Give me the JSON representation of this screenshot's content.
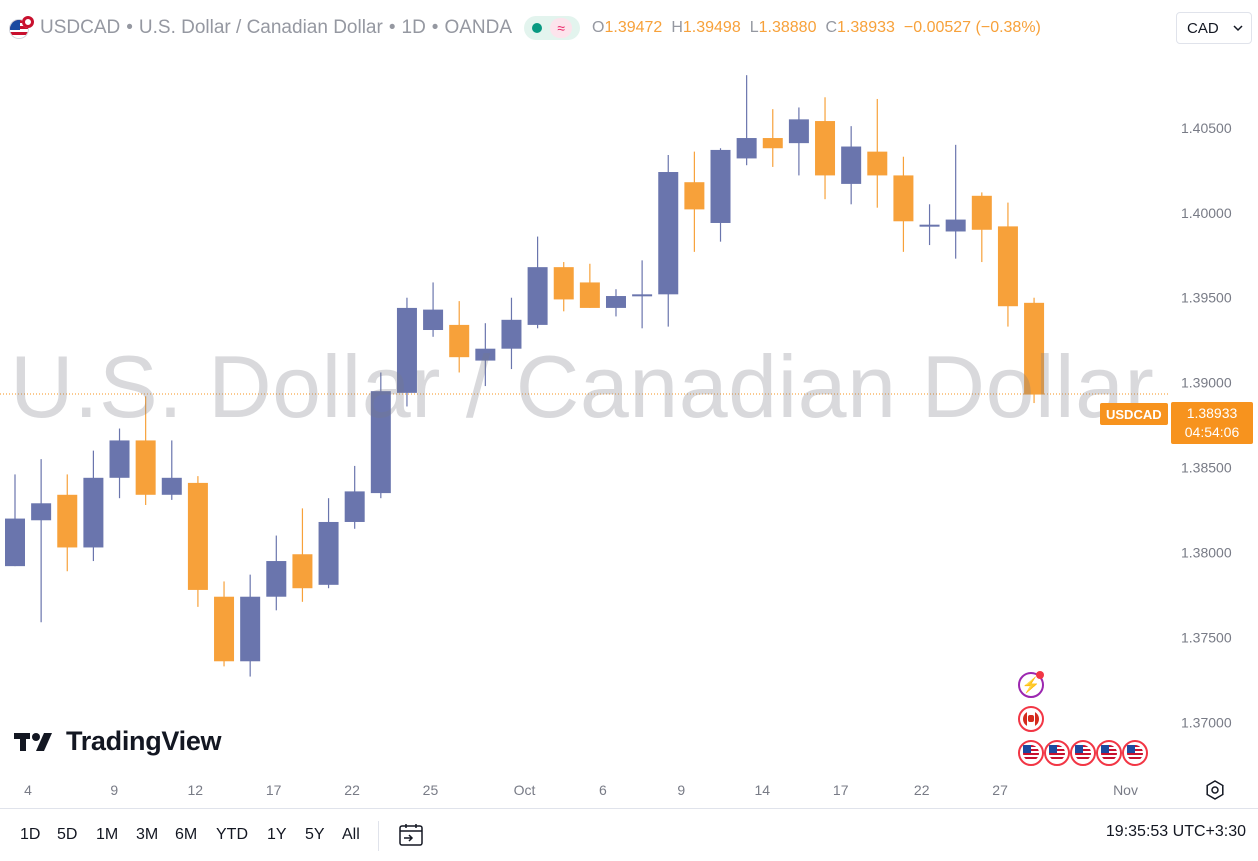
{
  "header": {
    "symbol": "USDCAD",
    "name": "U.S. Dollar / Canadian Dollar",
    "interval": "1D",
    "exchange": "OANDA",
    "open_label": "O",
    "open_value": "1.39472",
    "high_label": "H",
    "high_value": "1.39498",
    "low_label": "L",
    "low_value": "1.38880",
    "close_label": "C",
    "close_value": "1.38933",
    "change": "−0.00527 (−0.38%)"
  },
  "currency_button": {
    "label": "CAD"
  },
  "watermark": "U.S. Dollar / Canadian Dollar",
  "logo": {
    "text": "TradingView"
  },
  "price_label": {
    "symbol": "USDCAD",
    "price": "1.38933",
    "countdown": "04:54:06"
  },
  "timeframes": [
    "1D",
    "5D",
    "1M",
    "3M",
    "6M",
    "YTD",
    "1Y",
    "5Y",
    "All"
  ],
  "clock": "19:35:53 UTC+3:30",
  "colors": {
    "up": "#6a75ad",
    "down": "#f7a13a",
    "price_line": "#f7931e",
    "axis_text": "#787b86"
  },
  "icons": [
    "settings-icon",
    "calendar-range-icon",
    "chevron-down-icon",
    "bolt-icon",
    "canada-flag-icon",
    "us-flag-icon"
  ],
  "chart_data": {
    "type": "candlestick",
    "x_tick_labels": [
      "4",
      "9",
      "12",
      "17",
      "22",
      "25",
      "Oct",
      "6",
      "9",
      "14",
      "17",
      "22",
      "27",
      "Nov"
    ],
    "y_tick_labels": [
      "1.40500",
      "1.40000",
      "1.39500",
      "1.39000",
      "1.38500",
      "1.38000",
      "1.37500",
      "1.37000"
    ],
    "y_ticks": [
      1.405,
      1.4,
      1.395,
      1.39,
      1.385,
      1.38,
      1.375,
      1.37
    ],
    "ylim": [
      1.3672,
      1.4097
    ],
    "last_price": 1.38933,
    "candles": [
      {
        "o": 1.3792,
        "h": 1.3846,
        "l": 1.3792,
        "c": 1.382
      },
      {
        "o": 1.3819,
        "h": 1.3855,
        "l": 1.3759,
        "c": 1.3829
      },
      {
        "o": 1.3834,
        "h": 1.3846,
        "l": 1.3789,
        "c": 1.3803
      },
      {
        "o": 1.3803,
        "h": 1.386,
        "l": 1.3795,
        "c": 1.3844
      },
      {
        "o": 1.3844,
        "h": 1.3873,
        "l": 1.3832,
        "c": 1.3866
      },
      {
        "o": 1.3866,
        "h": 1.3892,
        "l": 1.3828,
        "c": 1.3834
      },
      {
        "o": 1.3834,
        "h": 1.3866,
        "l": 1.3831,
        "c": 1.3844
      },
      {
        "o": 1.3841,
        "h": 1.3845,
        "l": 1.3768,
        "c": 1.3778
      },
      {
        "o": 1.3774,
        "h": 1.3783,
        "l": 1.3733,
        "c": 1.3736
      },
      {
        "o": 1.3736,
        "h": 1.3787,
        "l": 1.3727,
        "c": 1.3774
      },
      {
        "o": 1.3774,
        "h": 1.381,
        "l": 1.3766,
        "c": 1.3795
      },
      {
        "o": 1.3799,
        "h": 1.3826,
        "l": 1.3771,
        "c": 1.3779
      },
      {
        "o": 1.3781,
        "h": 1.3832,
        "l": 1.3779,
        "c": 1.3818
      },
      {
        "o": 1.3818,
        "h": 1.3851,
        "l": 1.3814,
        "c": 1.3836
      },
      {
        "o": 1.3835,
        "h": 1.3906,
        "l": 1.3832,
        "c": 1.3895
      },
      {
        "o": 1.3894,
        "h": 1.395,
        "l": 1.3886,
        "c": 1.3944
      },
      {
        "o": 1.3931,
        "h": 1.3959,
        "l": 1.3927,
        "c": 1.3943
      },
      {
        "o": 1.3934,
        "h": 1.3948,
        "l": 1.3906,
        "c": 1.3915
      },
      {
        "o": 1.3913,
        "h": 1.3935,
        "l": 1.3898,
        "c": 1.392
      },
      {
        "o": 1.392,
        "h": 1.395,
        "l": 1.3908,
        "c": 1.3937
      },
      {
        "o": 1.3934,
        "h": 1.3986,
        "l": 1.3932,
        "c": 1.3968
      },
      {
        "o": 1.3968,
        "h": 1.3971,
        "l": 1.3942,
        "c": 1.3949
      },
      {
        "o": 1.3959,
        "h": 1.397,
        "l": 1.3944,
        "c": 1.3944
      },
      {
        "o": 1.3944,
        "h": 1.3955,
        "l": 1.3939,
        "c": 1.3951
      },
      {
        "o": 1.3951,
        "h": 1.3972,
        "l": 1.3932,
        "c": 1.3952
      },
      {
        "o": 1.3952,
        "h": 1.4034,
        "l": 1.3933,
        "c": 1.4024
      },
      {
        "o": 1.4018,
        "h": 1.4036,
        "l": 1.3977,
        "c": 1.4002
      },
      {
        "o": 1.3994,
        "h": 1.4038,
        "l": 1.3983,
        "c": 1.4037
      },
      {
        "o": 1.4032,
        "h": 1.4081,
        "l": 1.4028,
        "c": 1.4044
      },
      {
        "o": 1.4044,
        "h": 1.4061,
        "l": 1.4027,
        "c": 1.4038
      },
      {
        "o": 1.4041,
        "h": 1.4062,
        "l": 1.4022,
        "c": 1.4055
      },
      {
        "o": 1.4054,
        "h": 1.4068,
        "l": 1.4008,
        "c": 1.4022
      },
      {
        "o": 1.4017,
        "h": 1.4051,
        "l": 1.4005,
        "c": 1.4039
      },
      {
        "o": 1.4036,
        "h": 1.4067,
        "l": 1.4003,
        "c": 1.4022
      },
      {
        "o": 1.4022,
        "h": 1.4033,
        "l": 1.3977,
        "c": 1.3995
      },
      {
        "o": 1.3993,
        "h": 1.4005,
        "l": 1.3981,
        "c": 1.3993
      },
      {
        "o": 1.3989,
        "h": 1.404,
        "l": 1.3973,
        "c": 1.3996
      },
      {
        "o": 1.401,
        "h": 1.4012,
        "l": 1.3971,
        "c": 1.399
      },
      {
        "o": 1.3992,
        "h": 1.4006,
        "l": 1.3933,
        "c": 1.3945
      },
      {
        "o": 1.3947,
        "h": 1.395,
        "l": 1.3888,
        "c": 1.3893
      }
    ],
    "x_label_at": [
      [
        "4",
        0.5
      ],
      [
        "9",
        3.8
      ],
      [
        "12",
        6.9
      ],
      [
        "17",
        9.9
      ],
      [
        "22",
        12.9
      ],
      [
        "25",
        15.9
      ],
      [
        "Oct",
        19.5
      ],
      [
        "6",
        22.5
      ],
      [
        "9",
        25.5
      ],
      [
        "14",
        28.6
      ],
      [
        "17",
        31.6
      ],
      [
        "22",
        34.7
      ],
      [
        "27",
        37.7
      ],
      [
        "Nov",
        42.5
      ]
    ],
    "events": [
      "bolt",
      "canada-flag",
      "us-flag",
      "us-flag",
      "us-flag",
      "us-flag",
      "us-flag"
    ]
  }
}
